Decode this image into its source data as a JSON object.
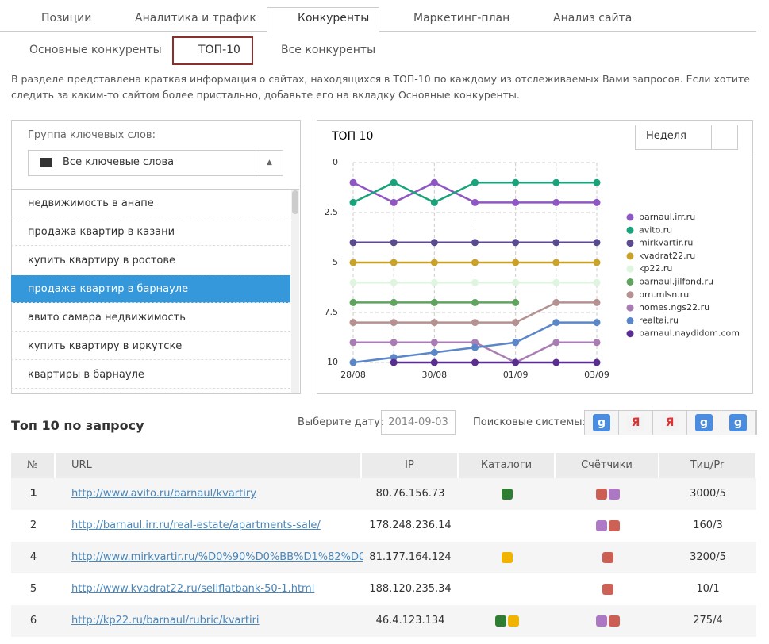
{
  "tabs": [
    "Позиции",
    "Аналитика и трафик",
    "Конкуренты",
    "Маркетинг-план",
    "Анализ сайта"
  ],
  "subtabs": [
    "Основные конкуренты",
    "ТОП-10",
    "Все конкуренты"
  ],
  "description": "В разделе представлена краткая информация о сайтах, находящихся в ТОП-10 по каждому из отслеживаемых Вами запросов. Если хотите следить за каким-то сайтом более пристально, добавьте его на вкладку Основные конкуренты.",
  "keyword_panel": {
    "label": "Группа ключевых слов:",
    "group": "Все ключевые слова",
    "items": [
      "недвижимость в анапе",
      "продажа квартир в казани",
      "купить квартиру в ростове",
      "продажа квартир в барнауле",
      "авито самара недвижимость",
      "купить квартиру в иркутске",
      "квартиры в барнауле"
    ],
    "selected": 3
  },
  "chart_data": {
    "type": "line",
    "title": "ТОП 10",
    "period": "Неделя",
    "categories": [
      "28/08",
      null,
      "30/08",
      null,
      "01/09",
      null,
      "03/09"
    ],
    "ylim": [
      10,
      0
    ],
    "yticks": [
      0,
      2.5,
      5,
      7.5,
      10
    ],
    "grid": true,
    "series": [
      {
        "name": "barnaul.irr.ru",
        "color": "#8e57c2",
        "values": [
          1,
          2,
          1,
          2,
          2,
          2,
          2
        ]
      },
      {
        "name": "avito.ru",
        "color": "#1aa37a",
        "values": [
          2,
          1,
          2,
          1,
          1,
          1,
          1
        ]
      },
      {
        "name": "mirkvartir.ru",
        "color": "#5a4a8f",
        "values": [
          4,
          4,
          4,
          4,
          4,
          4,
          4
        ]
      },
      {
        "name": "kvadrat22.ru",
        "color": "#c9a227",
        "values": [
          5,
          5,
          5,
          5,
          5,
          5,
          5
        ]
      },
      {
        "name": "kp22.ru",
        "color": "#dff5df",
        "values": [
          6,
          6,
          6,
          6,
          6,
          6,
          6
        ]
      },
      {
        "name": "barnaul.jilfond.ru",
        "color": "#5fa35f",
        "values": [
          7,
          7,
          7,
          7,
          7,
          null,
          null
        ]
      },
      {
        "name": "brn.mlsn.ru",
        "color": "#b59191",
        "values": [
          8,
          8,
          8,
          8,
          8,
          7,
          7
        ]
      },
      {
        "name": "homes.ngs22.ru",
        "color": "#a97db3",
        "values": [
          9,
          9,
          9,
          9,
          10,
          9,
          9
        ]
      },
      {
        "name": "realtai.ru",
        "color": "#5b87c9",
        "values": [
          10,
          9.75,
          9.5,
          9.25,
          9,
          8,
          8
        ]
      },
      {
        "name": "barnaul.naydidom.com",
        "color": "#5a2d91",
        "values": [
          null,
          10,
          10,
          10,
          10,
          10,
          10
        ]
      }
    ]
  },
  "query_section": {
    "title": "Топ 10 по запросу",
    "date_label": "Выберите дату:",
    "date": "2014-09-03",
    "engines_label": "Поисковые системы:",
    "engines": [
      "g",
      "Я",
      "Я",
      "g",
      "g"
    ]
  },
  "table": {
    "header": [
      "№",
      "URL",
      "IP",
      "Каталоги",
      "Счётчики",
      "Тиц/Pr"
    ],
    "rows": [
      [
        1,
        "http://www.avito.ru/barnaul/kvartiry",
        "80.76.156.73",
        "3000/5"
      ],
      [
        2,
        "http://barnaul.irr.ru/real-estate/apartments-sale/",
        "178.248.236.14",
        "160/3"
      ],
      [
        4,
        "http://www.mirkvartir.ru/%D0%90%D0%BB%D1%82%D0%...",
        "81.177.164.124",
        "3200/5"
      ],
      [
        5,
        "http://www.kvadrat22.ru/sellflatbank-50-1.html",
        "188.120.235.34",
        "10/1"
      ],
      [
        6,
        "http://kp22.ru/barnaul/rubric/kvartiri",
        "46.4.123.134",
        "275/4"
      ]
    ]
  }
}
